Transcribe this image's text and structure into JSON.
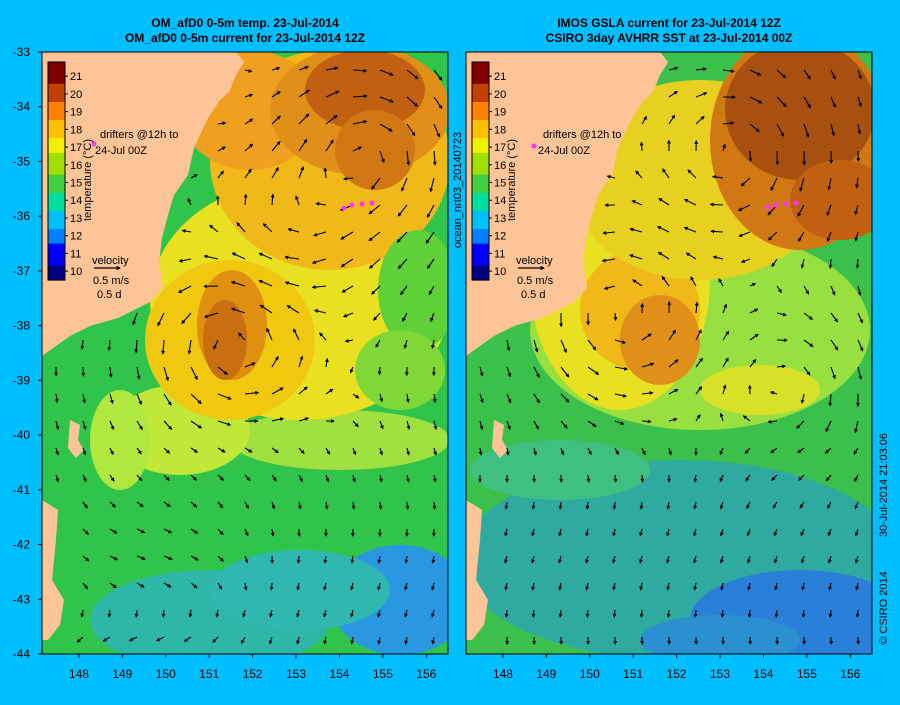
{
  "figure": {
    "background": "#00bfff",
    "side_label": "ocean_nrt03_20140723",
    "timestamp": "30-Jul-2014 21:03:06",
    "copyright": "© CSIRO 2014"
  },
  "axes": {
    "lat_ticks": [
      "-33",
      "-34",
      "-35",
      "-36",
      "-37",
      "-38",
      "-39",
      "-40",
      "-41",
      "-42",
      "-43",
      "-44"
    ],
    "lon_ticks": [
      "148",
      "149",
      "150",
      "151",
      "152",
      "153",
      "154",
      "155",
      "156"
    ],
    "lat_range": [
      -44,
      -33
    ],
    "lon_range": [
      147.15,
      156.5
    ]
  },
  "colorbar": {
    "ticks": [
      "21",
      "20",
      "19",
      "18",
      "17",
      "16",
      "15",
      "14",
      "13",
      "12",
      "11",
      "10"
    ],
    "range": [
      9.5,
      21.8
    ],
    "label": "temperature (°C)"
  },
  "panels": [
    {
      "id": "left",
      "title_1": "OM_afD0 0-5m temp. 23-Jul-2014",
      "title_2": "OM_afD0 0-5m current for 23-Jul-2014 12Z",
      "drifters_1": "drifters @12h to",
      "drifters_2": "24-Jul 00Z",
      "velocity_title": "velocity",
      "velocity_speed": "0.5 m/s",
      "velocity_days": "0.5 d"
    },
    {
      "id": "right",
      "title_1": "IMOS GSLA current for 23-Jul-2014 12Z",
      "title_2": "CSIRO 3day AVHRR SST at 23-Jul-2014 00Z",
      "drifters_1": "drifters @12h to",
      "drifters_2": "24-Jul 00Z",
      "velocity_title": "velocity",
      "velocity_speed": "0.5 m/s",
      "velocity_days": "0.5 d"
    }
  ],
  "colors": {
    "land": "#fdc597",
    "frame": "#000000",
    "drifter": "#ff33ff",
    "colormap": [
      "#000080",
      "#0000ff",
      "#0080ff",
      "#00c0ff",
      "#00e0a0",
      "#40d040",
      "#a0e000",
      "#f0f000",
      "#ffc000",
      "#ff8000",
      "#c04000",
      "#800000"
    ]
  }
}
